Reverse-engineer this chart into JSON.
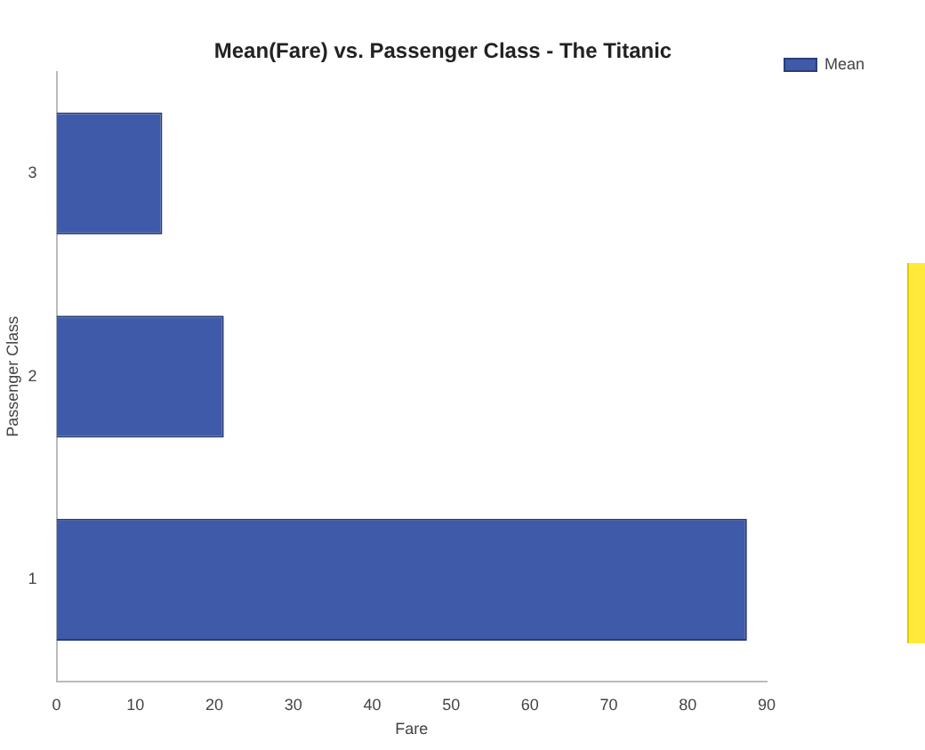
{
  "chart_data": {
    "type": "bar",
    "orientation": "horizontal",
    "title": "Mean(Fare) vs. Passenger Class - The Titanic",
    "xlabel": "Fare",
    "ylabel": "Passenger Class",
    "categories": [
      "3",
      "2",
      "1"
    ],
    "series": [
      {
        "name": "Mean",
        "color": "#3f5aa8",
        "values": [
          13.4,
          21.2,
          87.5
        ]
      }
    ],
    "xlim": [
      0,
      90
    ],
    "xticks": [
      0,
      10,
      20,
      30,
      40,
      50,
      60,
      70,
      80,
      90
    ],
    "grid": false,
    "legend": "top right"
  }
}
